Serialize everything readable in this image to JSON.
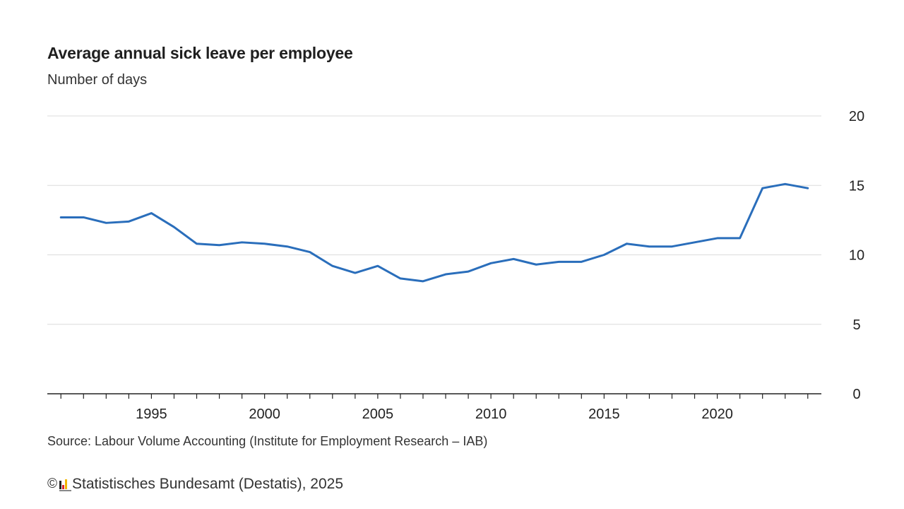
{
  "header": {
    "title": "Average annual sick leave per employee",
    "subtitle": "Number of days"
  },
  "footer": {
    "source": "Source: Labour Volume Accounting (Institute for Employment Research – IAB)",
    "copyright_symbol": "©",
    "publisher": "Statistisches Bundesamt (Destatis), 2025",
    "logo_icon": "destatis-logo-icon"
  },
  "colors": {
    "line": "#2a6ebb",
    "grid": "#dcdcdc",
    "axis": "#222222"
  },
  "chart_data": {
    "type": "line",
    "title": "Average annual sick leave per employee",
    "subtitle": "Number of days",
    "xlabel": "",
    "ylabel": "",
    "xlim": [
      1990.4,
      2024.6
    ],
    "ylim": [
      0,
      20
    ],
    "yticks": [
      0,
      5,
      10,
      15,
      20
    ],
    "xtick_labels": [
      1995,
      2000,
      2005,
      2010,
      2015,
      2020
    ],
    "y_axis_position": "right",
    "grid": true,
    "legend": "none",
    "series": [
      {
        "x": [
          1991,
          1992,
          1993,
          1994,
          1995,
          1996,
          1997,
          1998,
          1999,
          2000,
          2001,
          2002,
          2003,
          2004,
          2005,
          2006,
          2007,
          2008,
          2009,
          2010,
          2011,
          2012,
          2013,
          2014,
          2015,
          2016,
          2017,
          2018,
          2019,
          2020,
          2021,
          2022,
          2023,
          2024
        ],
        "values": [
          12.7,
          12.7,
          12.3,
          12.4,
          13.0,
          12.0,
          10.8,
          10.7,
          10.9,
          10.8,
          10.6,
          10.2,
          9.2,
          8.7,
          9.2,
          8.3,
          8.1,
          8.6,
          8.8,
          9.4,
          9.7,
          9.3,
          9.5,
          9.5,
          10.0,
          10.8,
          10.6,
          10.6,
          10.9,
          11.2,
          11.2,
          14.8,
          15.1,
          14.8
        ]
      }
    ]
  }
}
